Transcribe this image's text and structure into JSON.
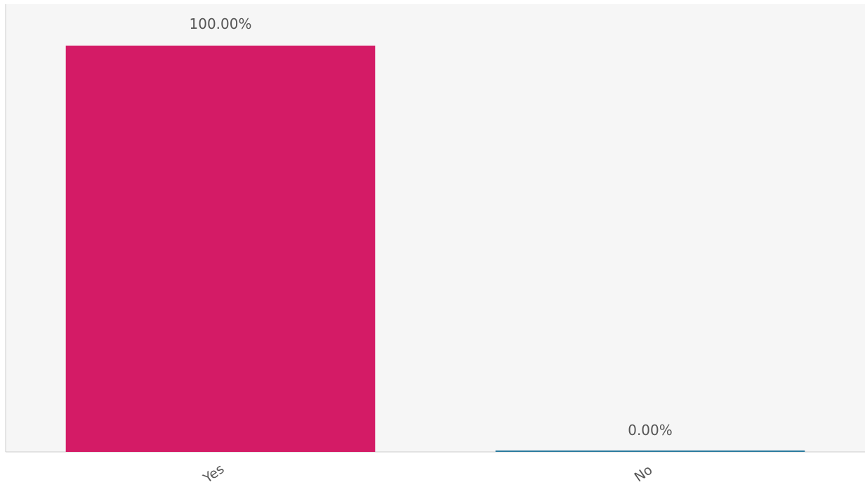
{
  "chart_data": {
    "type": "bar",
    "categories": [
      "Yes",
      "No"
    ],
    "values": [
      100.0,
      0.0
    ],
    "value_labels": [
      "100.00%",
      "0.00%"
    ],
    "colors": [
      "#d41b66",
      "#2a7a9e"
    ],
    "ylim": [
      0,
      100
    ],
    "grid": false,
    "plot_background": "#f6f6f6",
    "axis_color": "#cccccc",
    "tick_label_rotation": -35
  }
}
